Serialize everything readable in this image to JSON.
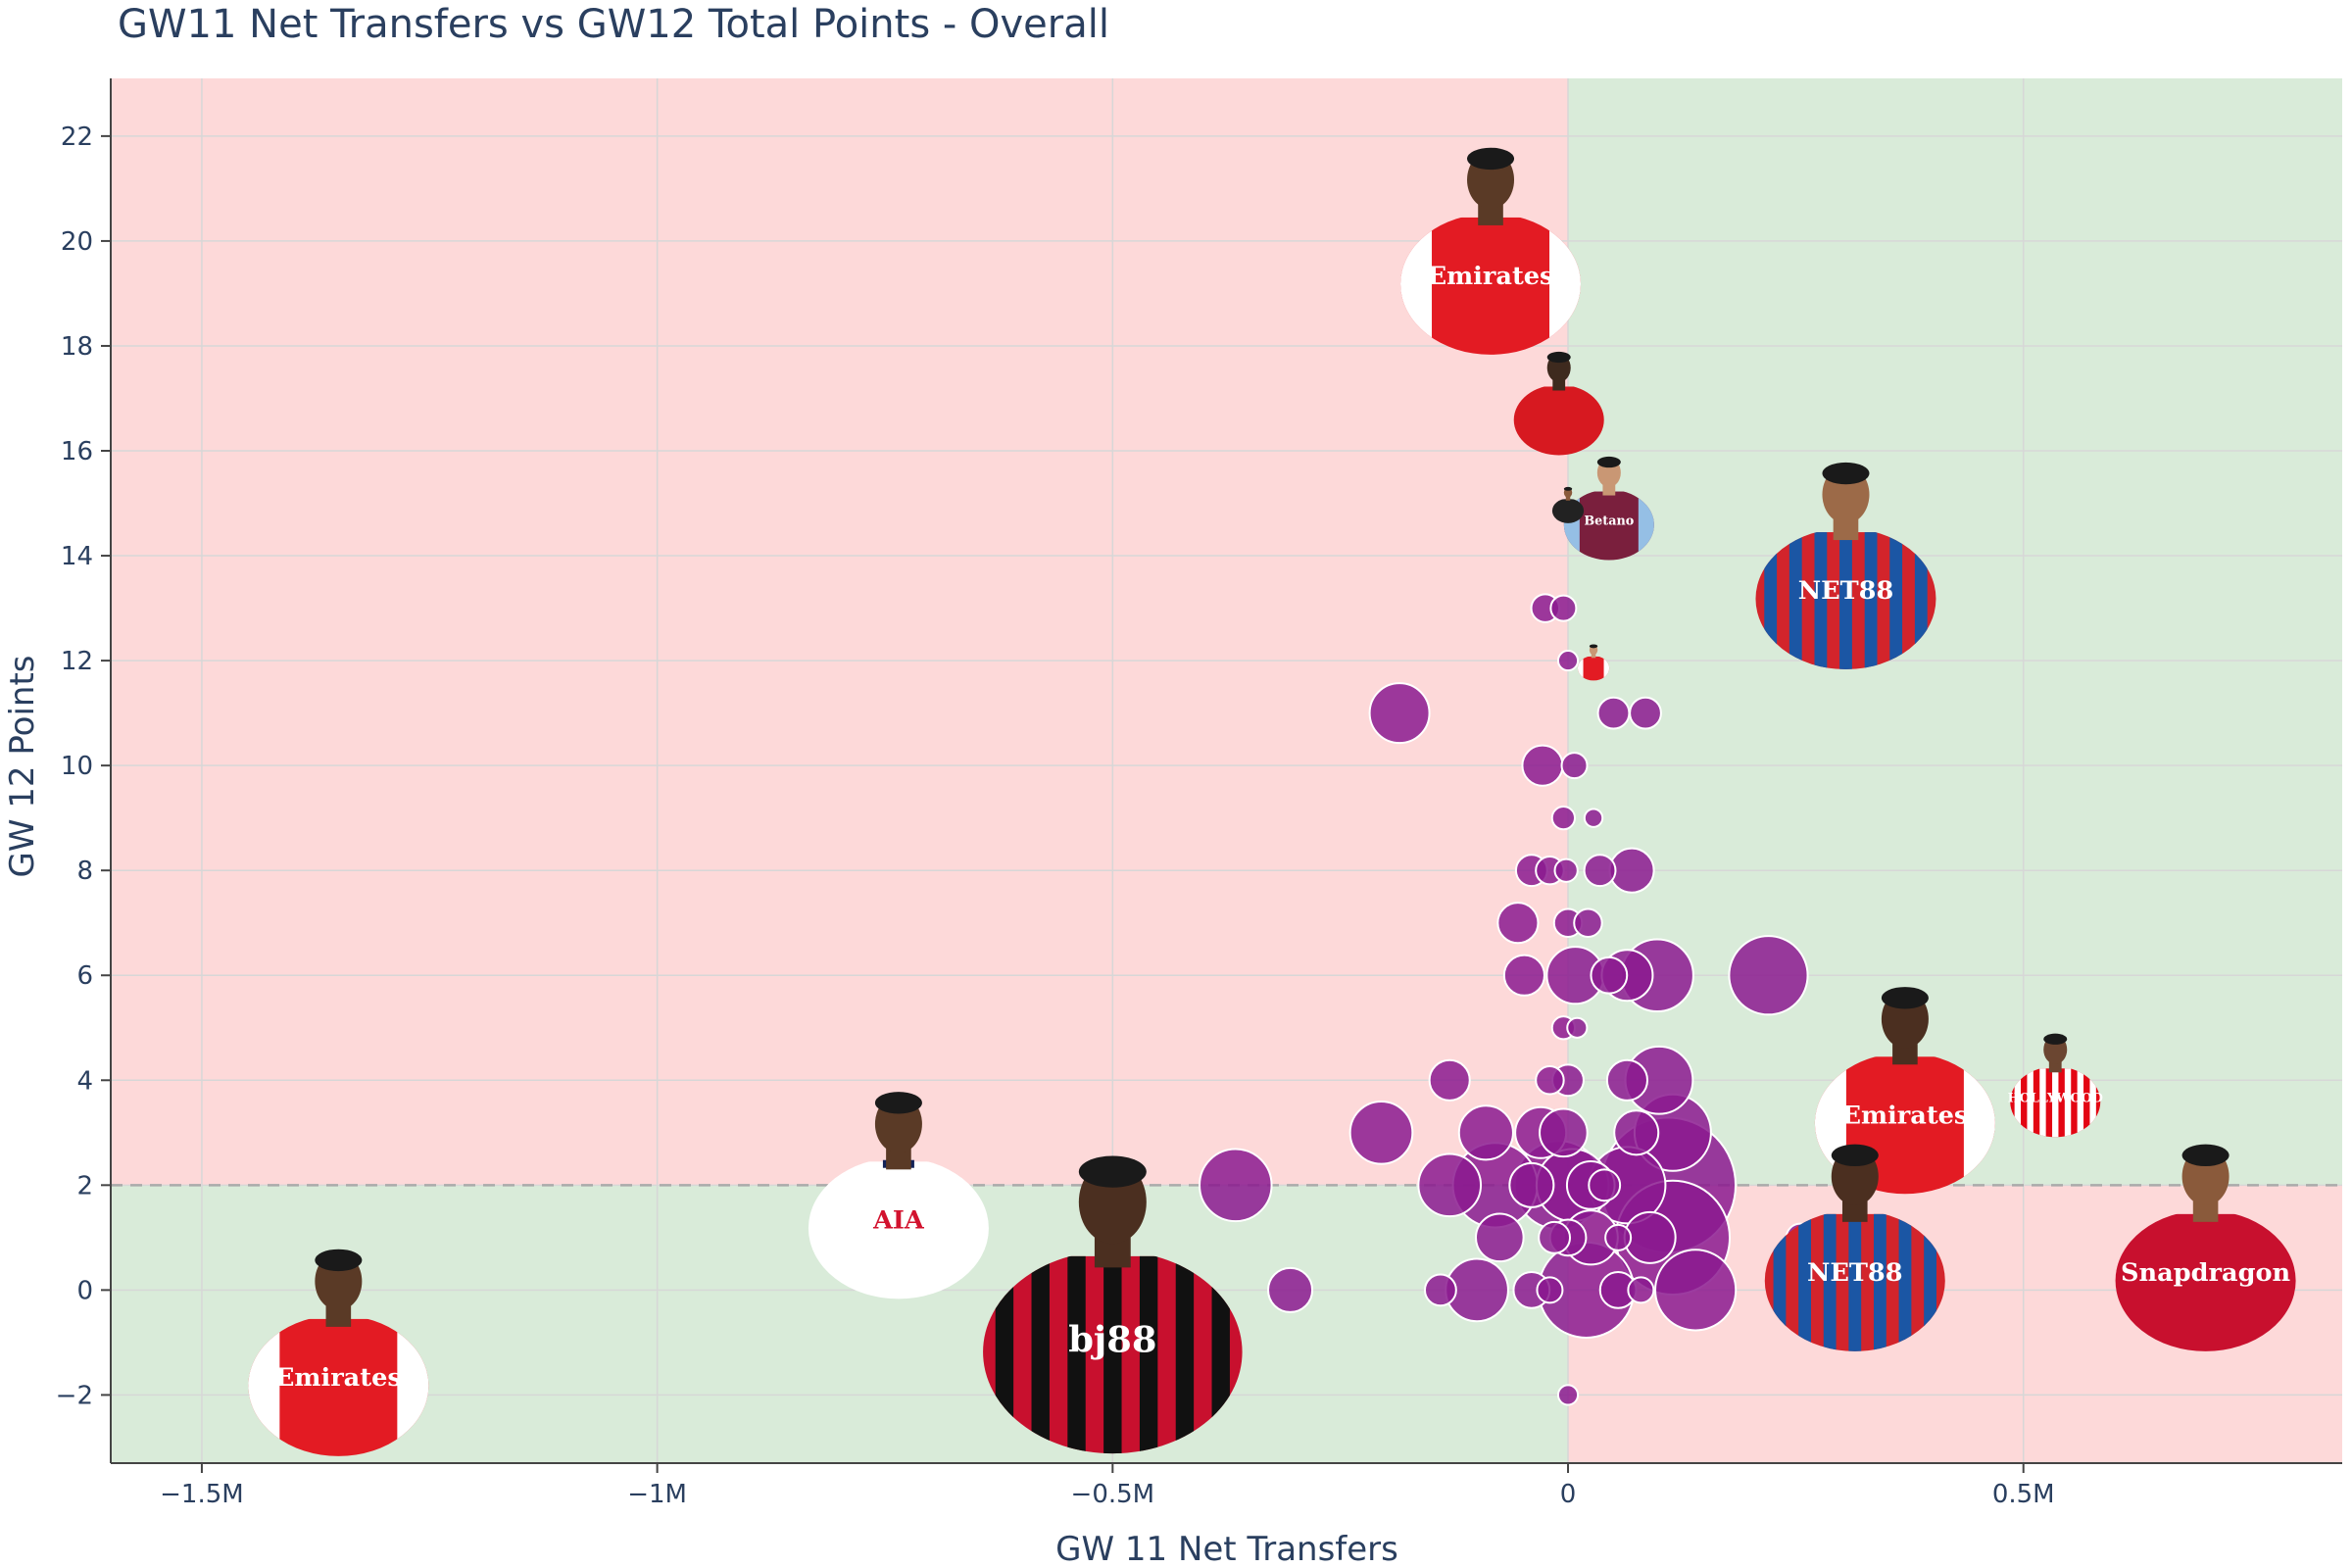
{
  "chart_data": {
    "type": "scatter",
    "title": "GW11 Net Transfers vs GW12 Total Points - Overall",
    "xlabel": "GW 11 Net Transfers",
    "ylabel": "GW 12 Points",
    "xlim": [
      -1600000,
      850000
    ],
    "ylim": [
      -3.3,
      23.1
    ],
    "grid": true,
    "legend": "none",
    "x_ticks": [
      {
        "value": -1500000,
        "label": "−1.5M"
      },
      {
        "value": -1000000,
        "label": "−1M"
      },
      {
        "value": -500000,
        "label": "−0.5M"
      },
      {
        "value": 0,
        "label": "0"
      },
      {
        "value": 500000,
        "label": "0.5M"
      }
    ],
    "y_ticks": [
      {
        "value": -2,
        "label": "−2"
      },
      {
        "value": 0,
        "label": "0"
      },
      {
        "value": 2,
        "label": "2"
      },
      {
        "value": 4,
        "label": "4"
      },
      {
        "value": 6,
        "label": "6"
      },
      {
        "value": 8,
        "label": "8"
      },
      {
        "value": 10,
        "label": "10"
      },
      {
        "value": 12,
        "label": "12"
      },
      {
        "value": 14,
        "label": "14"
      },
      {
        "value": 16,
        "label": "16"
      },
      {
        "value": 18,
        "label": "18"
      },
      {
        "value": 20,
        "label": "20"
      },
      {
        "value": 22,
        "label": "22"
      }
    ],
    "threshold_y": 2,
    "colors": {
      "marker": "#8b1a8f",
      "marker_outline": "#ffffff",
      "quadrant_red": "#fdd9d9",
      "quadrant_green": "#d9ebd9",
      "grid": "#d7d7d7",
      "axis": "#444444",
      "threshold_line": "#aaaaaa"
    },
    "points": [
      {
        "x": -185000,
        "y": 11,
        "size": 55000
      },
      {
        "x": -25000,
        "y": 13,
        "size": 12000
      },
      {
        "x": -5000,
        "y": 13,
        "size": 10000
      },
      {
        "x": 0,
        "y": 12,
        "size": 6000
      },
      {
        "x": 50000,
        "y": 11,
        "size": 15000
      },
      {
        "x": 85000,
        "y": 11,
        "size": 15000
      },
      {
        "x": -28000,
        "y": 10,
        "size": 25000
      },
      {
        "x": 7000,
        "y": 10,
        "size": 10000
      },
      {
        "x": -5000,
        "y": 9,
        "size": 8000
      },
      {
        "x": 28000,
        "y": 9,
        "size": 5000
      },
      {
        "x": -40000,
        "y": 8,
        "size": 15000
      },
      {
        "x": -20000,
        "y": 8,
        "size": 12000
      },
      {
        "x": -2000,
        "y": 8,
        "size": 8000
      },
      {
        "x": 35000,
        "y": 8,
        "size": 15000
      },
      {
        "x": 70000,
        "y": 8,
        "size": 30000
      },
      {
        "x": -55000,
        "y": 7,
        "size": 25000
      },
      {
        "x": 0,
        "y": 7,
        "size": 12000
      },
      {
        "x": 22000,
        "y": 7,
        "size": 12000
      },
      {
        "x": -48000,
        "y": 6,
        "size": 25000
      },
      {
        "x": 8000,
        "y": 6,
        "size": 50000
      },
      {
        "x": 45000,
        "y": 6,
        "size": 20000
      },
      {
        "x": 65000,
        "y": 6,
        "size": 40000
      },
      {
        "x": 98000,
        "y": 6,
        "size": 80000
      },
      {
        "x": 220000,
        "y": 6,
        "size": 95000
      },
      {
        "x": -5000,
        "y": 5,
        "size": 8000
      },
      {
        "x": 10000,
        "y": 5,
        "size": 6000
      },
      {
        "x": -130000,
        "y": 4,
        "size": 25000
      },
      {
        "x": -20000,
        "y": 4,
        "size": 12000
      },
      {
        "x": 0,
        "y": 4,
        "size": 15000
      },
      {
        "x": 65000,
        "y": 4,
        "size": 25000
      },
      {
        "x": 100000,
        "y": 4,
        "size": 70000
      },
      {
        "x": -205000,
        "y": 3,
        "size": 60000
      },
      {
        "x": -90000,
        "y": 3,
        "size": 45000
      },
      {
        "x": -30000,
        "y": 3,
        "size": 40000
      },
      {
        "x": -5000,
        "y": 3,
        "size": 35000
      },
      {
        "x": 75000,
        "y": 3,
        "size": 30000
      },
      {
        "x": 115000,
        "y": 3,
        "size": 90000
      },
      {
        "x": 425000,
        "y": 3,
        "size": 70000
      },
      {
        "x": -365000,
        "y": 2,
        "size": 80000
      },
      {
        "x": -130000,
        "y": 2,
        "size": 60000
      },
      {
        "x": -80000,
        "y": 2,
        "size": 110000
      },
      {
        "x": -40000,
        "y": 2,
        "size": 30000
      },
      {
        "x": -10000,
        "y": 2,
        "size": 120000
      },
      {
        "x": 5000,
        "y": 2,
        "size": 80000
      },
      {
        "x": 25000,
        "y": 2,
        "size": 35000
      },
      {
        "x": 40000,
        "y": 2,
        "size": 15000
      },
      {
        "x": 65000,
        "y": 2,
        "size": 90000
      },
      {
        "x": 110000,
        "y": 2,
        "size": 280000
      },
      {
        "x": -75000,
        "y": 1,
        "size": 35000
      },
      {
        "x": -15000,
        "y": 1,
        "size": 15000
      },
      {
        "x": 0,
        "y": 1,
        "size": 20000
      },
      {
        "x": 25000,
        "y": 1,
        "size": 45000
      },
      {
        "x": 55000,
        "y": 1,
        "size": 10000
      },
      {
        "x": 90000,
        "y": 1,
        "size": 40000
      },
      {
        "x": 115000,
        "y": 1,
        "size": 200000
      },
      {
        "x": 255000,
        "y": 1,
        "size": 12000
      },
      {
        "x": -305000,
        "y": 0,
        "size": 30000
      },
      {
        "x": -140000,
        "y": 0,
        "size": 15000
      },
      {
        "x": -100000,
        "y": 0,
        "size": 60000
      },
      {
        "x": -40000,
        "y": 0,
        "size": 20000
      },
      {
        "x": -20000,
        "y": 0,
        "size": 10000
      },
      {
        "x": 20000,
        "y": 0,
        "size": 140000
      },
      {
        "x": 55000,
        "y": 0,
        "size": 20000
      },
      {
        "x": 80000,
        "y": 0,
        "size": 10000
      },
      {
        "x": 140000,
        "y": 0,
        "size": 100000
      },
      {
        "x": 0,
        "y": -2,
        "size": 6000
      }
    ],
    "player_markers": [
      {
        "x": -85000,
        "y": 20,
        "size": "medium",
        "kit": "Arsenal",
        "kit_text": "Emirates",
        "shirt": "#e31b23",
        "trim": "#ffffff",
        "skin": "#5a3a26"
      },
      {
        "x": -10000,
        "y": 17,
        "size": "small",
        "kit": "Nottingham Forest",
        "kit_text": "",
        "shirt": "#d71920",
        "trim": "#ffffff",
        "skin": "#3e2a1e"
      },
      {
        "x": 45000,
        "y": 15,
        "size": "small",
        "kit": "Aston Villa",
        "kit_text": "Betano",
        "shirt": "#7a1f3d",
        "trim": "#95bfe5",
        "skin": "#c99774"
      },
      {
        "x": 0,
        "y": 15,
        "size": "tiny",
        "kit": "Newcastle",
        "kit_text": "",
        "shirt": "#222222",
        "trim": "#ffffff",
        "skin": "#8a5a3b"
      },
      {
        "x": 305000,
        "y": 14,
        "size": "medium",
        "kit": "Crystal Palace",
        "kit_text": "NET88",
        "shirt": "#d3242b",
        "trim": "#1b56a4",
        "skin": "#9c6a48"
      },
      {
        "x": 28000,
        "y": 12,
        "size": "tiny",
        "kit": "Arsenal",
        "kit_text": "",
        "shirt": "#e31b23",
        "trim": "#ffffff",
        "skin": "#c99774"
      },
      {
        "x": -1350000,
        "y": -1,
        "size": "medium",
        "kit": "Arsenal",
        "kit_text": "Emirates",
        "shirt": "#e31b23",
        "trim": "#ffffff",
        "skin": "#5a3a26"
      },
      {
        "x": -735000,
        "y": 2,
        "size": "medium",
        "kit": "Tottenham",
        "kit_text": "AIA",
        "shirt": "#ffffff",
        "trim": "#132257",
        "skin": "#5a3a26"
      },
      {
        "x": -500000,
        "y": 0,
        "size": "large",
        "kit": "Bournemouth",
        "kit_text": "bj88",
        "shirt": "#c8102e",
        "trim": "#111111",
        "skin": "#4b2f20"
      },
      {
        "x": 370000,
        "y": 4,
        "size": "medium",
        "kit": "Arsenal",
        "kit_text": "Emirates",
        "shirt": "#e31b23",
        "trim": "#ffffff",
        "skin": "#4b2f20"
      },
      {
        "x": 535000,
        "y": 4,
        "size": "small",
        "kit": "Brentford",
        "kit_text": "HOLLYWOOD",
        "shirt": "#e30613",
        "trim": "#ffffff",
        "skin": "#6b4631"
      },
      {
        "x": 315000,
        "y": 1,
        "size": "medium",
        "kit": "Crystal Palace",
        "kit_text": "NET88",
        "shirt": "#d3242b",
        "trim": "#1b56a4",
        "skin": "#4b2f20"
      },
      {
        "x": 700000,
        "y": 1,
        "size": "medium",
        "kit": "Manchester United",
        "kit_text": "Snapdragon",
        "shirt": "#c8102e",
        "trim": "#111111",
        "skin": "#8a5a3b"
      }
    ]
  }
}
